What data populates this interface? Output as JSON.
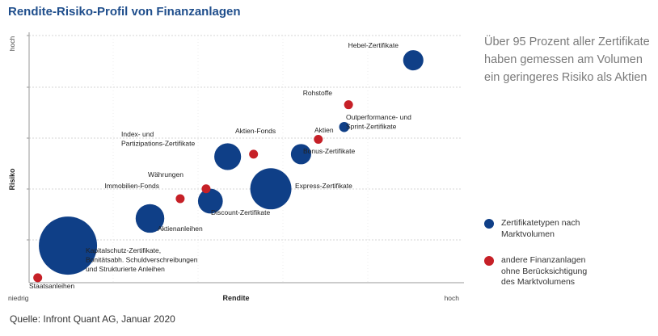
{
  "title": "Rendite-Risiko-Profil von Finanzanlagen",
  "annotation": "Über 95 Prozent aller Zertifikate haben gemessen am Volumen ein geringeres Risiko als Aktien",
  "source": "Quelle: Infront Quant AG, Januar 2020",
  "colors": {
    "blue": "#0f3f87",
    "red": "#c62027",
    "grid": "#d6d6d6",
    "axis": "#9a9a9a"
  },
  "legend": [
    {
      "label": "Zertifikatetypen nach Marktvolumen",
      "lines": [
        "Zertifikatetypen nach",
        "Marktvolumen"
      ],
      "color": "#0f3f87"
    },
    {
      "label": "andere Finanzanlagen ohne Berücksichtigung des Marktvolumens",
      "lines": [
        "andere Finanzanlagen",
        "ohne Berücksichtigung",
        "des Marktvolumens"
      ],
      "color": "#c62027"
    }
  ],
  "chart_data": {
    "type": "scatter",
    "title": "Rendite-Risiko-Profil von Finanzanlagen",
    "xlabel": "Rendite",
    "ylabel": "Risiko",
    "x_tick_labels": [
      "niedrig",
      "hoch"
    ],
    "y_tick_labels": [
      "hoch"
    ],
    "xlim": [
      0,
      100
    ],
    "ylim": [
      0,
      100
    ],
    "grid": "horizontal",
    "legend_position": "right",
    "series": [
      {
        "name": "Zertifikatetypen nach Marktvolumen",
        "color": "#0f3f87",
        "points": [
          {
            "label": "Kapitalschutz-Zertifikate, Bonitätsabh. Schuldverschreibungen und Strukturierte Anleihen",
            "label_lines": [
              "Kapitalschutz-Zertifikate,",
              "Bonitätsabh. Schuldverschreibungen",
              "und Strukturierte Anleihen"
            ],
            "x": 9,
            "y": 15,
            "size": 66
          },
          {
            "label": "Aktienanleihen",
            "label_lines": [
              "Aktienanleihen"
            ],
            "x": 28,
            "y": 26,
            "size": 16
          },
          {
            "label": "Discount-Zertifikate",
            "label_lines": [
              "Discount-Zertifikate"
            ],
            "x": 42,
            "y": 33,
            "size": 12
          },
          {
            "label": "Express-Zertifikate",
            "label_lines": [
              "Express-Zertifikate"
            ],
            "x": 56,
            "y": 38,
            "size": 33
          },
          {
            "label": "Index- und Partizipations-Zertifikate",
            "label_lines": [
              "Index- und",
              "Partizipations-Zertifikate"
            ],
            "x": 46,
            "y": 51,
            "size": 14
          },
          {
            "label": "Bonus-Zertifikate",
            "label_lines": [
              "Bonus-Zertifikate"
            ],
            "x": 63,
            "y": 52,
            "size": 8
          },
          {
            "label": "Outperformance- und Sprint-Zertifikate",
            "label_lines": [
              "Outperformance- und",
              "Sprint-Zertifikate"
            ],
            "x": 73,
            "y": 63,
            "size": 2
          },
          {
            "label": "Hebel-Zertifikate",
            "label_lines": [
              "Hebel-Zertifikate"
            ],
            "x": 89,
            "y": 90,
            "size": 8
          }
        ]
      },
      {
        "name": "andere Finanzanlagen ohne Berücksichtigung des Marktvolumens",
        "color": "#c62027",
        "points": [
          {
            "label": "Staatsanleihen",
            "x": 2,
            "y": 2
          },
          {
            "label": "Immobilien-Fonds",
            "x": 35,
            "y": 34
          },
          {
            "label": "Währungen",
            "x": 41,
            "y": 38
          },
          {
            "label": "Aktien-Fonds",
            "x": 52,
            "y": 52
          },
          {
            "label": "Aktien",
            "x": 67,
            "y": 58
          },
          {
            "label": "Rohstoffe",
            "x": 74,
            "y": 72
          }
        ]
      }
    ]
  }
}
